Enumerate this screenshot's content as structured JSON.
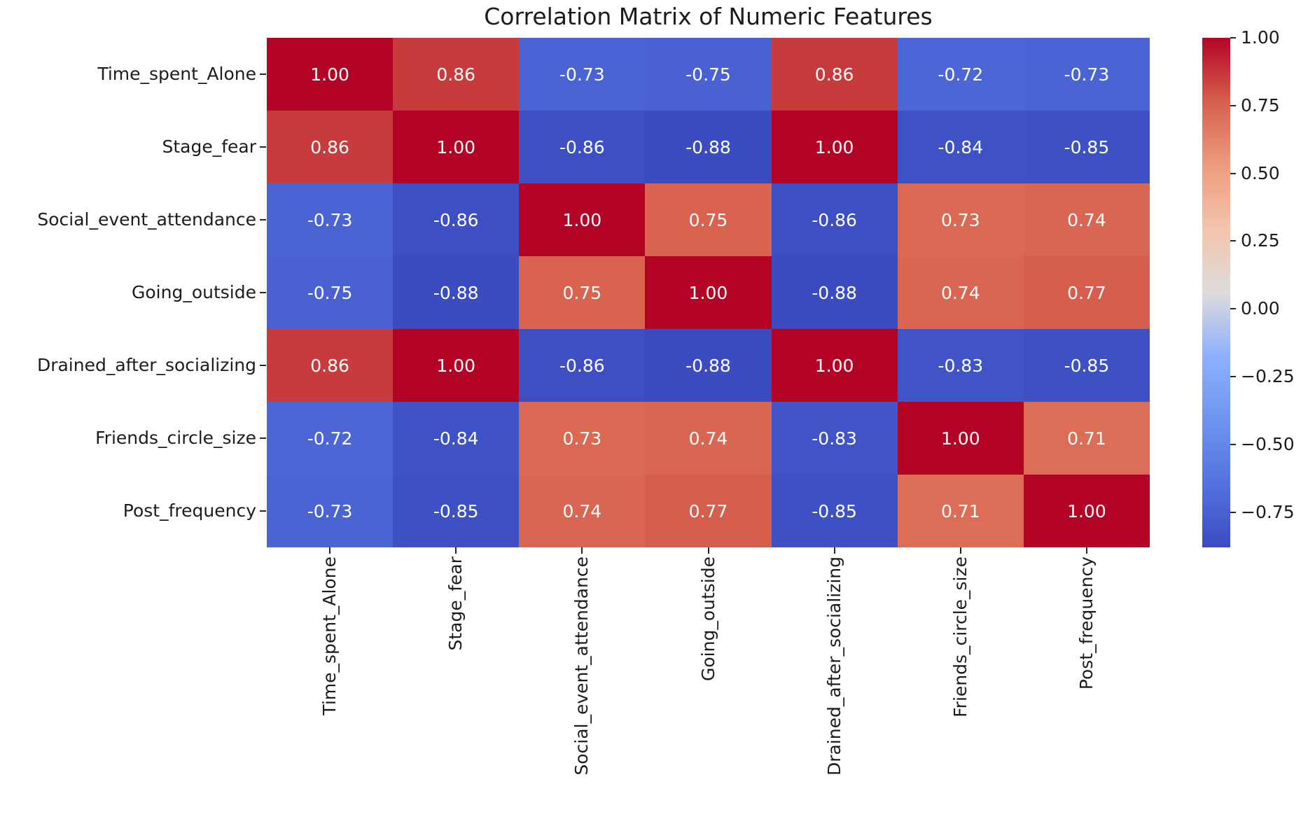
{
  "chart_data": {
    "type": "heatmap",
    "title": "Correlation Matrix of Numeric Features",
    "features": [
      "Time_spent_Alone",
      "Stage_fear",
      "Social_event_attendance",
      "Going_outside",
      "Drained_after_socializing",
      "Friends_circle_size",
      "Post_frequency"
    ],
    "matrix": [
      [
        1.0,
        0.86,
        -0.73,
        -0.75,
        0.86,
        -0.72,
        -0.73
      ],
      [
        0.86,
        1.0,
        -0.86,
        -0.88,
        1.0,
        -0.84,
        -0.85
      ],
      [
        -0.73,
        -0.86,
        1.0,
        0.75,
        -0.86,
        0.73,
        0.74
      ],
      [
        -0.75,
        -0.88,
        0.75,
        1.0,
        -0.88,
        0.74,
        0.77
      ],
      [
        0.86,
        1.0,
        -0.86,
        -0.88,
        1.0,
        -0.83,
        -0.85
      ],
      [
        -0.72,
        -0.84,
        0.73,
        0.74,
        -0.83,
        1.0,
        0.71
      ],
      [
        -0.73,
        -0.85,
        0.74,
        0.77,
        -0.85,
        0.71,
        1.0
      ]
    ],
    "vmin": -0.88,
    "vmax": 1.0,
    "annotation_format": ".2f",
    "colormap": "coolwarm",
    "legend_position": "right",
    "grid": false,
    "colorbar_ticks": [
      {
        "value": 1.0,
        "label": "1.00"
      },
      {
        "value": 0.75,
        "label": "0.75"
      },
      {
        "value": 0.5,
        "label": "0.50"
      },
      {
        "value": 0.25,
        "label": "0.25"
      },
      {
        "value": 0.0,
        "label": "0.00"
      },
      {
        "value": -0.25,
        "label": "−0.25"
      },
      {
        "value": -0.5,
        "label": "−0.50"
      },
      {
        "value": -0.75,
        "label": "−0.75"
      }
    ],
    "colors": {
      "cmap_min": "#3b4cc0",
      "cmap_mid": "#dddcdc",
      "cmap_max": "#b40426",
      "annotation_text": "#ffffff",
      "axis_text": "#1c1c1c",
      "background": "#ffffff"
    }
  }
}
